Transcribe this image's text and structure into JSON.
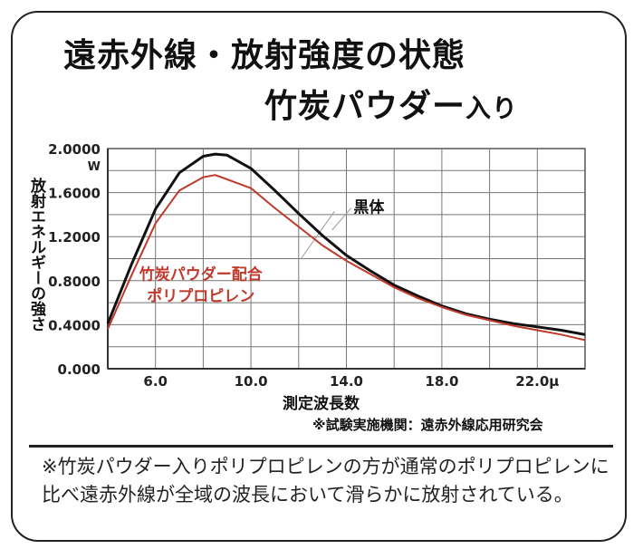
{
  "title_line1": "遠赤外線・放射強度の状態",
  "title_line2_main": "竹炭パウダー",
  "title_line2_suffix": "入り",
  "chart_data": {
    "type": "line",
    "title": "遠赤外線・放射強度の状態 竹炭パウダー入り",
    "xlabel": "測定波長数",
    "ylabel": "放射エネルギーの強さ",
    "y_unit": "W",
    "xlim": [
      4,
      24
    ],
    "ylim": [
      0,
      2.0
    ],
    "grid": true,
    "x_ticks": [
      6,
      8,
      10,
      12,
      14,
      16,
      18,
      20,
      22
    ],
    "x_tick_labels": [
      {
        "v": 6,
        "label": "6.0"
      },
      {
        "v": 10,
        "label": "10.0"
      },
      {
        "v": 14,
        "label": "14.0"
      },
      {
        "v": 18,
        "label": "18.0"
      },
      {
        "v": 22,
        "label": "22.0μ"
      }
    ],
    "y_ticks": [
      0.2,
      0.4,
      0.6,
      0.8,
      1.0,
      1.2,
      1.4,
      1.6,
      1.8
    ],
    "y_tick_labels": [
      {
        "v": 0,
        "label": "0.000"
      },
      {
        "v": 0.4,
        "label": "0.4000"
      },
      {
        "v": 0.8,
        "label": "0.8000"
      },
      {
        "v": 1.2,
        "label": "1.2000"
      },
      {
        "v": 1.6,
        "label": "1.6000"
      },
      {
        "v": 2.0,
        "label": "2.0000"
      }
    ],
    "x": [
      4,
      5,
      6,
      7,
      8,
      8.5,
      9,
      10,
      11,
      12,
      13,
      14,
      15,
      16,
      17,
      18,
      19,
      20,
      21,
      22,
      23,
      24
    ],
    "series": [
      {
        "name": "黒体",
        "color": "#111111",
        "values": [
          0.41,
          0.95,
          1.45,
          1.78,
          1.93,
          1.95,
          1.94,
          1.82,
          1.62,
          1.41,
          1.21,
          1.03,
          0.89,
          0.76,
          0.66,
          0.57,
          0.5,
          0.45,
          0.41,
          0.38,
          0.35,
          0.31
        ]
      },
      {
        "name": "竹炭パウダー配合ポリプロピレン",
        "color": "#c0392b",
        "values": [
          0.36,
          0.85,
          1.32,
          1.62,
          1.74,
          1.76,
          1.72,
          1.64,
          1.46,
          1.29,
          1.12,
          0.98,
          0.86,
          0.74,
          0.64,
          0.56,
          0.49,
          0.44,
          0.39,
          0.35,
          0.31,
          0.26
        ]
      }
    ],
    "annotations": {
      "black_label": "黒体",
      "red_label_line1": "竹炭パウダー配合",
      "red_label_line2": "ポリプロピレン"
    }
  },
  "source": "※試験実施機関：遠赤外線応用研究会",
  "note": "※竹炭パウダー入りポリプロピレンの方が通常のポリプロピレンに比べ遠赤外線が全域の波長において滑らかに放射されている。"
}
